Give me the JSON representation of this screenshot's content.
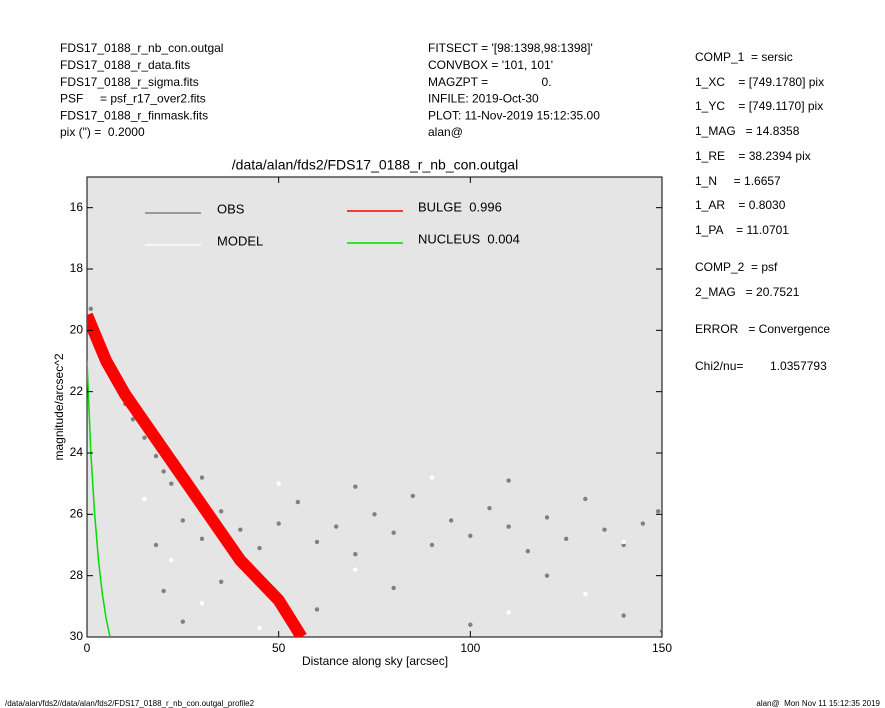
{
  "header_left": [
    "FDS17_0188_r_nb_con.outgal",
    "FDS17_0188_r_data.fits",
    "FDS17_0188_r_sigma.fits",
    "PSF     = psf_r17_over2.fits",
    "FDS17_0188_r_finmask.fits",
    "pix (\") =  0.2000"
  ],
  "header_middle": [
    "FITSECT = '[98:1398,98:1398]'",
    "CONVBOX = '101, 101'",
    "MAGZPT =                0.",
    "INFILE: 2019-Oct-30",
    "PLOT: 11-Nov-2019 15:12:35.00",
    "alan@"
  ],
  "side_panel": [
    "COMP_1  = sersic",
    "1_XC    = [749.1780] pix",
    "1_YC    = [749.1170] pix",
    "1_MAG   = 14.8358",
    "1_RE    = 38.2394 pix",
    "1_N     = 1.6657",
    "1_AR    = 0.8030",
    "1_PA    = 11.0701",
    "COMP_2  = psf",
    "2_MAG   = 20.7521",
    "ERROR   = Convergence",
    "Chi2/nu=        1.0357793"
  ],
  "footer_left": "/data/alan/fds2//data/alan/fds2/FDS17_0188_r_nb_con.outgal_profile2",
  "footer_right": "alan@  Mon Nov 11 15:12:35 2019",
  "chart_data": {
    "type": "scatter",
    "title": "/data/alan/fds2/FDS17_0188_r_nb_con.outgal",
    "xlabel": "Distance along sky [arcsec]",
    "ylabel": "magnitude/arcsec^2",
    "xlim": [
      0,
      150
    ],
    "ylim": [
      30,
      15
    ],
    "xticks": [
      0,
      50,
      100,
      150
    ],
    "yticks": [
      16,
      18,
      20,
      22,
      24,
      26,
      28,
      30
    ],
    "series": [
      {
        "name": "OBS",
        "color": "#808080",
        "style": "points",
        "x": [
          1,
          2,
          4,
          6,
          8,
          10,
          12,
          15,
          18,
          20,
          22,
          25,
          30,
          35,
          40,
          45,
          50,
          55,
          60,
          65,
          70,
          75,
          80,
          85,
          90,
          95,
          100,
          105,
          110,
          115,
          120,
          125,
          130,
          135,
          140,
          145,
          149,
          20,
          25,
          35,
          60,
          80,
          100,
          120,
          140,
          18,
          30,
          70,
          110,
          150
        ],
        "values": [
          19.3,
          19.9,
          20.6,
          21.3,
          21.9,
          22.4,
          22.9,
          23.5,
          24.1,
          24.6,
          25.0,
          26.2,
          26.8,
          25.9,
          26.5,
          27.1,
          26.3,
          25.6,
          26.9,
          26.4,
          27.3,
          26.0,
          26.6,
          25.4,
          27.0,
          26.2,
          26.7,
          25.8,
          26.4,
          27.2,
          26.1,
          26.8,
          25.5,
          26.5,
          27.0,
          26.3,
          25.9,
          28.5,
          29.5,
          28.2,
          29.1,
          28.4,
          29.6,
          28.0,
          29.3,
          27.0,
          24.8,
          25.1,
          24.9,
          29.8
        ]
      },
      {
        "name": "MODEL",
        "color": "#ffffff",
        "style": "points",
        "x": [
          22,
          30,
          45,
          70,
          90,
          130,
          15,
          50,
          110,
          140
        ],
        "values": [
          27.5,
          28.9,
          29.7,
          27.8,
          24.8,
          28.6,
          25.5,
          25.0,
          29.2,
          26.9
        ]
      },
      {
        "name": "BULGE  0.996",
        "color": "#ff0000",
        "style": "band",
        "x": [
          0,
          5,
          10,
          20,
          30,
          40,
          50,
          56
        ],
        "values": [
          19.5,
          21.0,
          22.1,
          23.9,
          25.7,
          27.5,
          28.8,
          30
        ]
      },
      {
        "name": "NUCLEUS  0.004",
        "color": "#00dd00",
        "style": "line",
        "x": [
          0,
          1,
          2,
          3,
          4,
          5,
          6
        ],
        "values": [
          21,
          24,
          26,
          27.5,
          28.6,
          29.4,
          30
        ]
      }
    ]
  }
}
